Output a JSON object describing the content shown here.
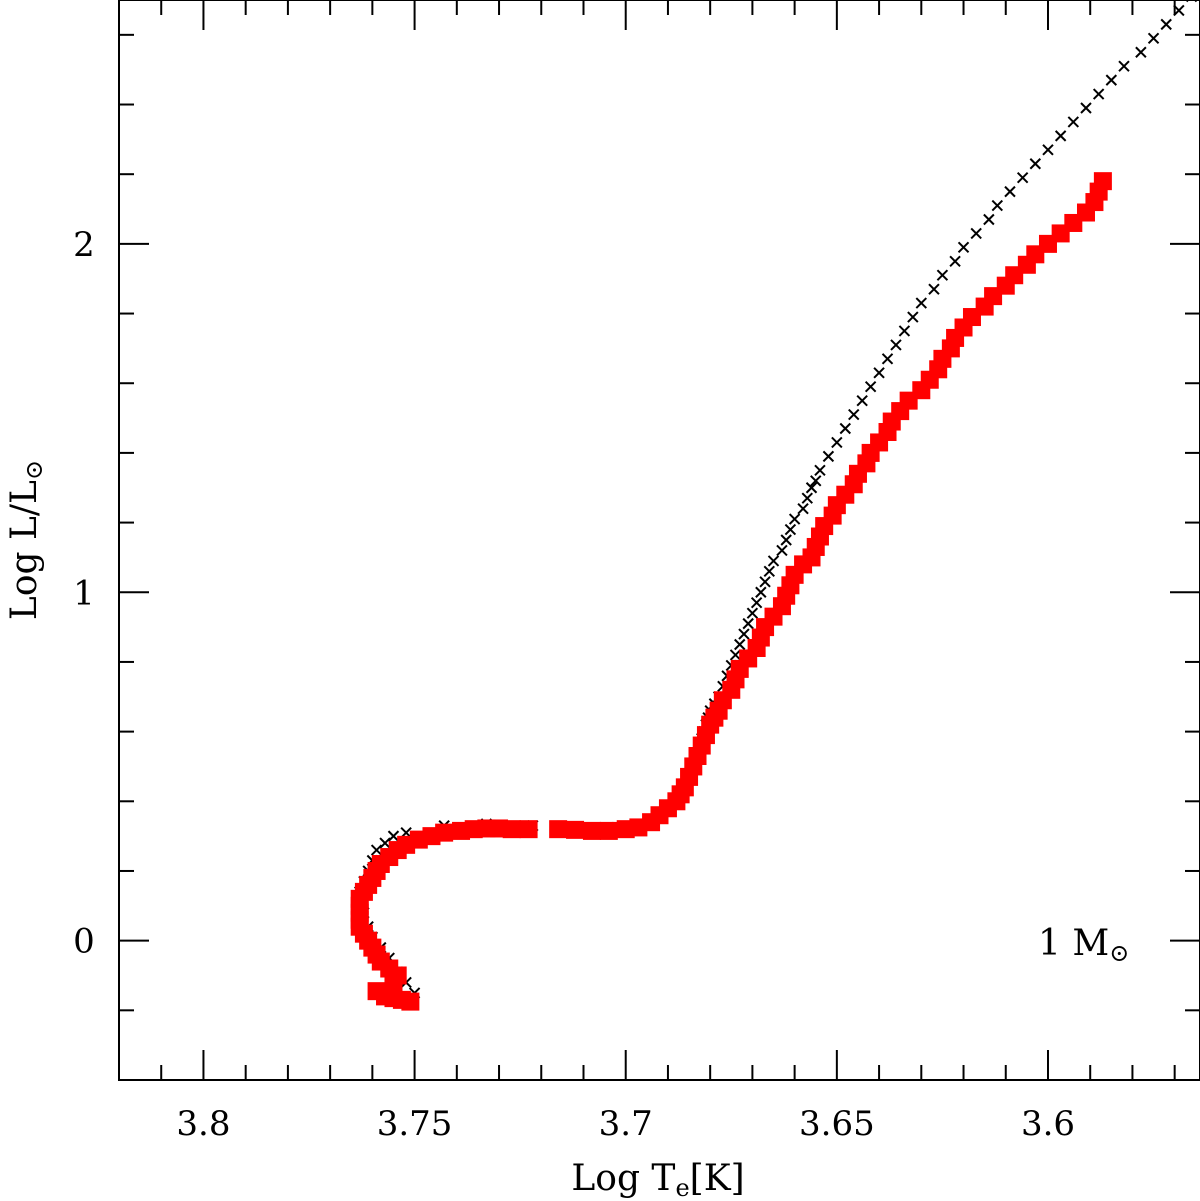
{
  "chart_data": {
    "type": "scatter",
    "title": "",
    "xlabel": {
      "main": "Log T",
      "sub": "e",
      "unit": "[K]"
    },
    "ylabel": {
      "main": "Log L/L",
      "sub": "⊙"
    },
    "xlim": [
      3.82,
      3.564
    ],
    "ylim": [
      -0.4,
      2.7
    ],
    "x_major_ticks": [
      3.8,
      3.75,
      3.7,
      3.65,
      3.6
    ],
    "x_tick_labels": [
      "3.8",
      "3.75",
      "3.7",
      "3.65",
      "3.6"
    ],
    "x_minor_step": 0.01,
    "y_major_ticks": [
      0,
      1,
      2
    ],
    "y_tick_labels": [
      "0",
      "1",
      "2"
    ],
    "y_minor_step": 0.2,
    "grid": false,
    "annotation": {
      "text": "1  M",
      "sub": "⊙",
      "x": 3.58,
      "y": 0
    },
    "series": [
      {
        "marker": "cross",
        "color": "#000000",
        "points": [
          [
            3.75,
            -0.15
          ],
          [
            3.752,
            -0.12
          ],
          [
            3.754,
            -0.09
          ],
          [
            3.756,
            -0.05
          ],
          [
            3.758,
            -0.02
          ],
          [
            3.76,
            0.01
          ],
          [
            3.761,
            0.04
          ],
          [
            3.762,
            0.08
          ],
          [
            3.763,
            0.11
          ],
          [
            3.763,
            0.14
          ],
          [
            3.762,
            0.17
          ],
          [
            3.761,
            0.2
          ],
          [
            3.76,
            0.23
          ],
          [
            3.759,
            0.26
          ],
          [
            3.757,
            0.28
          ],
          [
            3.755,
            0.3
          ],
          [
            3.752,
            0.31
          ],
          [
            3.743,
            0.33
          ],
          [
            3.733,
            0.335
          ],
          [
            3.722,
            0.33
          ],
          [
            3.712,
            0.325
          ],
          [
            3.702,
            0.325
          ],
          [
            3.694,
            0.34
          ],
          [
            3.692,
            0.36
          ],
          [
            3.69,
            0.38
          ],
          [
            3.688,
            0.4
          ],
          [
            3.687,
            0.42
          ],
          [
            3.686,
            0.44
          ],
          [
            3.685,
            0.46
          ],
          [
            3.6845,
            0.48
          ],
          [
            3.684,
            0.5
          ],
          [
            3.6835,
            0.52
          ],
          [
            3.683,
            0.54
          ],
          [
            3.6825,
            0.56
          ],
          [
            3.682,
            0.58
          ],
          [
            3.6815,
            0.6
          ],
          [
            3.681,
            0.62
          ],
          [
            3.6805,
            0.64
          ],
          [
            3.68,
            0.66
          ],
          [
            3.679,
            0.68
          ],
          [
            3.678,
            0.7
          ],
          [
            3.677,
            0.73
          ],
          [
            3.676,
            0.76
          ],
          [
            3.675,
            0.79
          ],
          [
            3.674,
            0.82
          ],
          [
            3.673,
            0.85
          ],
          [
            3.672,
            0.88
          ],
          [
            3.671,
            0.91
          ],
          [
            3.67,
            0.94
          ],
          [
            3.669,
            0.97
          ],
          [
            3.668,
            1.0
          ],
          [
            3.667,
            1.03
          ],
          [
            3.666,
            1.06
          ],
          [
            3.665,
            1.09
          ],
          [
            3.663,
            1.12
          ],
          [
            3.662,
            1.15
          ],
          [
            3.661,
            1.18
          ],
          [
            3.66,
            1.21
          ],
          [
            3.658,
            1.24
          ],
          [
            3.657,
            1.27
          ],
          [
            3.656,
            1.3
          ],
          [
            3.655,
            1.32
          ],
          [
            3.654,
            1.35
          ],
          [
            3.652,
            1.39
          ],
          [
            3.65,
            1.43
          ],
          [
            3.648,
            1.47
          ],
          [
            3.646,
            1.51
          ],
          [
            3.644,
            1.55
          ],
          [
            3.642,
            1.59
          ],
          [
            3.64,
            1.63
          ],
          [
            3.638,
            1.67
          ],
          [
            3.636,
            1.71
          ],
          [
            3.634,
            1.75
          ],
          [
            3.632,
            1.79
          ],
          [
            3.63,
            1.83
          ],
          [
            3.627,
            1.87
          ],
          [
            3.625,
            1.91
          ],
          [
            3.622,
            1.95
          ],
          [
            3.62,
            1.99
          ],
          [
            3.617,
            2.03
          ],
          [
            3.614,
            2.07
          ],
          [
            3.612,
            2.11
          ],
          [
            3.609,
            2.15
          ],
          [
            3.606,
            2.19
          ],
          [
            3.603,
            2.23
          ],
          [
            3.6,
            2.27
          ],
          [
            3.597,
            2.31
          ],
          [
            3.594,
            2.35
          ],
          [
            3.591,
            2.39
          ],
          [
            3.588,
            2.43
          ],
          [
            3.585,
            2.47
          ],
          [
            3.582,
            2.51
          ],
          [
            3.578,
            2.55
          ],
          [
            3.575,
            2.59
          ],
          [
            3.572,
            2.63
          ],
          [
            3.569,
            2.67
          ],
          [
            3.566,
            2.71
          ]
        ]
      },
      {
        "marker": "square",
        "color": "#ff0000",
        "points": [
          [
            3.751,
            -0.175
          ],
          [
            3.753,
            -0.17
          ],
          [
            3.755,
            -0.165
          ],
          [
            3.757,
            -0.16
          ],
          [
            3.759,
            -0.145
          ],
          [
            3.755,
            -0.12
          ],
          [
            3.754,
            -0.1
          ],
          [
            3.756,
            -0.08
          ],
          [
            3.758,
            -0.06
          ],
          [
            3.759,
            -0.04
          ],
          [
            3.76,
            -0.02
          ],
          [
            3.761,
            0.0
          ],
          [
            3.762,
            0.02
          ],
          [
            3.763,
            0.04
          ],
          [
            3.763,
            0.06
          ],
          [
            3.763,
            0.08
          ],
          [
            3.763,
            0.1
          ],
          [
            3.763,
            0.12
          ],
          [
            3.762,
            0.14
          ],
          [
            3.761,
            0.16
          ],
          [
            3.76,
            0.18
          ],
          [
            3.759,
            0.2
          ],
          [
            3.758,
            0.22
          ],
          [
            3.756,
            0.24
          ],
          [
            3.754,
            0.26
          ],
          [
            3.752,
            0.275
          ],
          [
            3.749,
            0.29
          ],
          [
            3.746,
            0.3
          ],
          [
            3.743,
            0.31
          ],
          [
            3.739,
            0.315
          ],
          [
            3.736,
            0.32
          ],
          [
            3.733,
            0.322
          ],
          [
            3.73,
            0.322
          ],
          [
            3.727,
            0.32
          ],
          [
            3.723,
            0.32
          ],
          [
            3.716,
            0.32
          ],
          [
            3.712,
            0.318
          ],
          [
            3.708,
            0.315
          ],
          [
            3.704,
            0.315
          ],
          [
            3.7,
            0.32
          ],
          [
            3.697,
            0.325
          ],
          [
            3.694,
            0.34
          ],
          [
            3.692,
            0.36
          ],
          [
            3.69,
            0.38
          ],
          [
            3.688,
            0.4
          ],
          [
            3.687,
            0.42
          ],
          [
            3.686,
            0.44
          ],
          [
            3.685,
            0.47
          ],
          [
            3.684,
            0.5
          ],
          [
            3.683,
            0.53
          ],
          [
            3.682,
            0.56
          ],
          [
            3.681,
            0.59
          ],
          [
            3.68,
            0.62
          ],
          [
            3.679,
            0.64
          ],
          [
            3.678,
            0.66
          ],
          [
            3.677,
            0.69
          ],
          [
            3.675,
            0.72
          ],
          [
            3.674,
            0.75
          ],
          [
            3.673,
            0.78
          ],
          [
            3.671,
            0.81
          ],
          [
            3.669,
            0.84
          ],
          [
            3.668,
            0.87
          ],
          [
            3.667,
            0.9
          ],
          [
            3.665,
            0.93
          ],
          [
            3.663,
            0.96
          ],
          [
            3.662,
            0.99
          ],
          [
            3.661,
            1.02
          ],
          [
            3.66,
            1.05
          ],
          [
            3.658,
            1.08
          ],
          [
            3.656,
            1.1
          ],
          [
            3.655,
            1.13
          ],
          [
            3.654,
            1.16
          ],
          [
            3.653,
            1.19
          ],
          [
            3.651,
            1.22
          ],
          [
            3.65,
            1.25
          ],
          [
            3.648,
            1.28
          ],
          [
            3.646,
            1.31
          ],
          [
            3.645,
            1.34
          ],
          [
            3.643,
            1.37
          ],
          [
            3.642,
            1.4
          ],
          [
            3.64,
            1.43
          ],
          [
            3.638,
            1.46
          ],
          [
            3.637,
            1.49
          ],
          [
            3.635,
            1.52
          ],
          [
            3.633,
            1.55
          ],
          [
            3.63,
            1.58
          ],
          [
            3.628,
            1.61
          ],
          [
            3.626,
            1.64
          ],
          [
            3.625,
            1.67
          ],
          [
            3.623,
            1.7
          ],
          [
            3.622,
            1.73
          ],
          [
            3.62,
            1.76
          ],
          [
            3.618,
            1.79
          ],
          [
            3.615,
            1.82
          ],
          [
            3.613,
            1.85
          ],
          [
            3.61,
            1.88
          ],
          [
            3.608,
            1.91
          ],
          [
            3.605,
            1.94
          ],
          [
            3.603,
            1.97
          ],
          [
            3.6,
            2.0
          ],
          [
            3.597,
            2.03
          ],
          [
            3.594,
            2.06
          ],
          [
            3.591,
            2.09
          ],
          [
            3.589,
            2.12
          ],
          [
            3.588,
            2.15
          ],
          [
            3.587,
            2.18
          ]
        ]
      }
    ]
  }
}
